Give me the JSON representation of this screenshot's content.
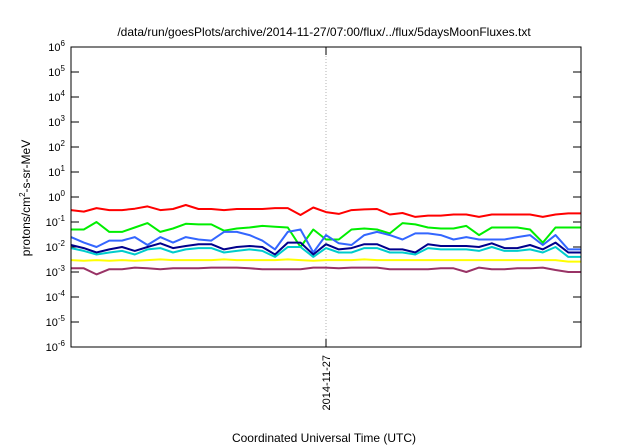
{
  "chart_data": {
    "type": "line",
    "title": "/data/run/goesPlots/archive/2014-11-27/07:00/flux/../flux/5daysMoonFluxes.txt",
    "xlabel": "Coordinated Universal Time (UTC)",
    "ylabel_parts": {
      "main": "protons/cm",
      "sup": "2",
      "rest": "-s-sr-MeV"
    },
    "y_scale": "log",
    "ylim": [
      1e-06,
      1000000.0
    ],
    "y_ticks": [
      {
        "value": 1000000.0,
        "base": "10",
        "exp": "6"
      },
      {
        "value": 100000.0,
        "base": "10",
        "exp": "5"
      },
      {
        "value": 10000.0,
        "base": "10",
        "exp": "4"
      },
      {
        "value": 1000.0,
        "base": "10",
        "exp": "3"
      },
      {
        "value": 100.0,
        "base": "10",
        "exp": "2"
      },
      {
        "value": 10.0,
        "base": "10",
        "exp": "1"
      },
      {
        "value": 1.0,
        "base": "10",
        "exp": "0"
      },
      {
        "value": 0.1,
        "base": "10",
        "exp": "-1"
      },
      {
        "value": 0.01,
        "base": "10",
        "exp": "-2"
      },
      {
        "value": 0.001,
        "base": "10",
        "exp": "-3"
      },
      {
        "value": 0.0001,
        "base": "10",
        "exp": "-4"
      },
      {
        "value": 1e-05,
        "base": "10",
        "exp": "-5"
      },
      {
        "value": 1e-06,
        "base": "10",
        "exp": "-6"
      }
    ],
    "x_tick_label": "2014-11-27",
    "x_tick_position": 0.5,
    "grid": true,
    "series": [
      {
        "color": "#ff0000",
        "values": [
          0.3,
          0.26,
          0.36,
          0.3,
          0.3,
          0.34,
          0.42,
          0.3,
          0.33,
          0.48,
          0.33,
          0.33,
          0.3,
          0.33,
          0.33,
          0.33,
          0.36,
          0.36,
          0.19,
          0.38,
          0.25,
          0.21,
          0.3,
          0.32,
          0.33,
          0.2,
          0.23,
          0.16,
          0.18,
          0.18,
          0.2,
          0.2,
          0.16,
          0.2,
          0.2,
          0.2,
          0.2,
          0.16,
          0.2,
          0.22,
          0.22
        ]
      },
      {
        "color": "#00ee00",
        "values": [
          0.05,
          0.05,
          0.1,
          0.04,
          0.04,
          0.06,
          0.09,
          0.04,
          0.055,
          0.085,
          0.08,
          0.08,
          0.045,
          0.055,
          0.06,
          0.07,
          0.065,
          0.06,
          0.01,
          0.05,
          0.02,
          0.02,
          0.05,
          0.055,
          0.05,
          0.035,
          0.09,
          0.08,
          0.06,
          0.055,
          0.055,
          0.07,
          0.03,
          0.06,
          0.06,
          0.06,
          0.05,
          0.015,
          0.06,
          0.06,
          0.06
        ]
      },
      {
        "color": "#3366ff",
        "values": [
          0.025,
          0.015,
          0.01,
          0.018,
          0.018,
          0.025,
          0.012,
          0.025,
          0.015,
          0.025,
          0.02,
          0.018,
          0.04,
          0.04,
          0.03,
          0.018,
          0.008,
          0.04,
          0.05,
          0.006,
          0.03,
          0.014,
          0.012,
          0.03,
          0.04,
          0.03,
          0.02,
          0.035,
          0.035,
          0.03,
          0.02,
          0.025,
          0.02,
          0.02,
          0.02,
          0.025,
          0.03,
          0.012,
          0.03,
          0.008,
          0.008
        ]
      },
      {
        "color": "#00008b",
        "values": [
          0.012,
          0.009,
          0.006,
          0.008,
          0.01,
          0.007,
          0.01,
          0.014,
          0.009,
          0.011,
          0.013,
          0.013,
          0.008,
          0.01,
          0.011,
          0.01,
          0.005,
          0.015,
          0.015,
          0.005,
          0.013,
          0.008,
          0.009,
          0.013,
          0.013,
          0.008,
          0.008,
          0.006,
          0.013,
          0.011,
          0.011,
          0.011,
          0.01,
          0.014,
          0.009,
          0.009,
          0.012,
          0.008,
          0.015,
          0.006,
          0.006
        ]
      },
      {
        "color": "#00cccc",
        "values": [
          0.009,
          0.007,
          0.005,
          0.006,
          0.007,
          0.005,
          0.008,
          0.009,
          0.006,
          0.008,
          0.009,
          0.009,
          0.006,
          0.007,
          0.008,
          0.007,
          0.004,
          0.01,
          0.01,
          0.004,
          0.009,
          0.006,
          0.006,
          0.009,
          0.009,
          0.006,
          0.006,
          0.005,
          0.009,
          0.008,
          0.008,
          0.008,
          0.007,
          0.01,
          0.007,
          0.007,
          0.008,
          0.006,
          0.01,
          0.004,
          0.004
        ]
      },
      {
        "color": "#ffff00",
        "values": [
          0.003,
          0.0028,
          0.003,
          0.0028,
          0.003,
          0.0028,
          0.003,
          0.0032,
          0.003,
          0.003,
          0.003,
          0.003,
          0.0032,
          0.003,
          0.003,
          0.003,
          0.003,
          0.0032,
          0.003,
          0.0028,
          0.003,
          0.003,
          0.003,
          0.0032,
          0.003,
          0.003,
          0.003,
          0.003,
          0.003,
          0.003,
          0.003,
          0.003,
          0.003,
          0.003,
          0.003,
          0.003,
          0.003,
          0.003,
          0.003,
          0.0026,
          0.0026
        ]
      },
      {
        "color": "#993366",
        "values": [
          0.0014,
          0.0014,
          0.0008,
          0.0013,
          0.0013,
          0.0015,
          0.0014,
          0.0013,
          0.0014,
          0.0014,
          0.0014,
          0.0015,
          0.0015,
          0.0015,
          0.0014,
          0.0013,
          0.0013,
          0.0013,
          0.0013,
          0.0015,
          0.0015,
          0.0014,
          0.0015,
          0.0015,
          0.0015,
          0.0013,
          0.0013,
          0.0013,
          0.0013,
          0.0014,
          0.0014,
          0.001,
          0.0015,
          0.0013,
          0.0013,
          0.0014,
          0.0014,
          0.0015,
          0.0012,
          0.001,
          0.001
        ]
      }
    ]
  }
}
